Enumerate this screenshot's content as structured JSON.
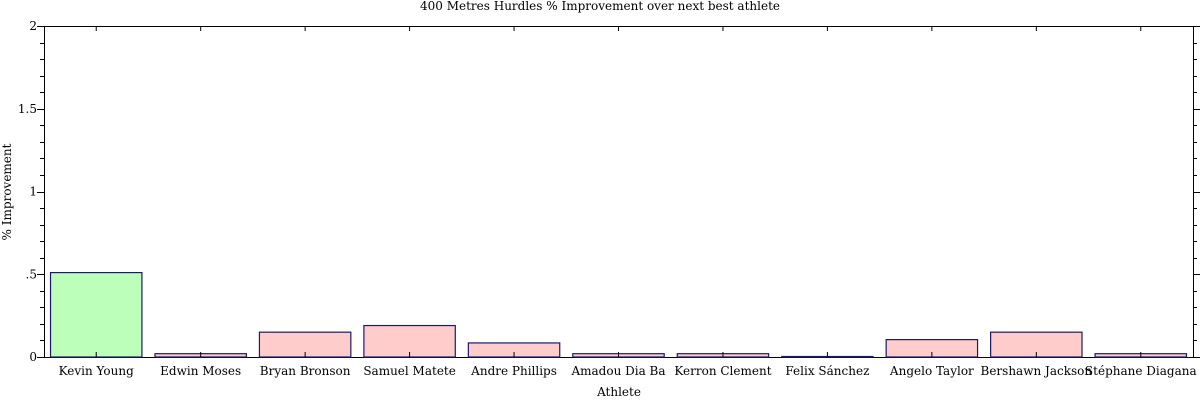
{
  "chart_data": {
    "type": "bar",
    "title": "400 Metres Hurdles % Improvement over next best athlete",
    "xlabel": "Athlete",
    "ylabel": "% Improvement",
    "ylim": [
      0,
      2
    ],
    "yticks": [
      {
        "value": 0,
        "label": "0"
      },
      {
        "value": 0.5,
        "label": ".5"
      },
      {
        "value": 1,
        "label": "1"
      },
      {
        "value": 1.5,
        "label": "1.5"
      },
      {
        "value": 2,
        "label": "2"
      }
    ],
    "categories": [
      "Kevin Young",
      "Edwin Moses",
      "Bryan Bronson",
      "Samuel Matete",
      "Andre Phillips",
      "Amadou Dia Ba",
      "Kerron Clement",
      "Felix Sánchez",
      "Angelo Taylor",
      "Bershawn Jackson",
      "Stéphane Diagana"
    ],
    "values": [
      0.51,
      0.02,
      0.15,
      0.19,
      0.085,
      0.02,
      0.02,
      0.0,
      0.105,
      0.15,
      0.02
    ],
    "colors": [
      "#bbffbb",
      "#ffcccc",
      "#ffcccc",
      "#ffcccc",
      "#ffcccc",
      "#ffcccc",
      "#ffcccc",
      "#ffcccc",
      "#ffcccc",
      "#ffcccc",
      "#ffcccc"
    ],
    "grid": false,
    "legend": "none"
  }
}
